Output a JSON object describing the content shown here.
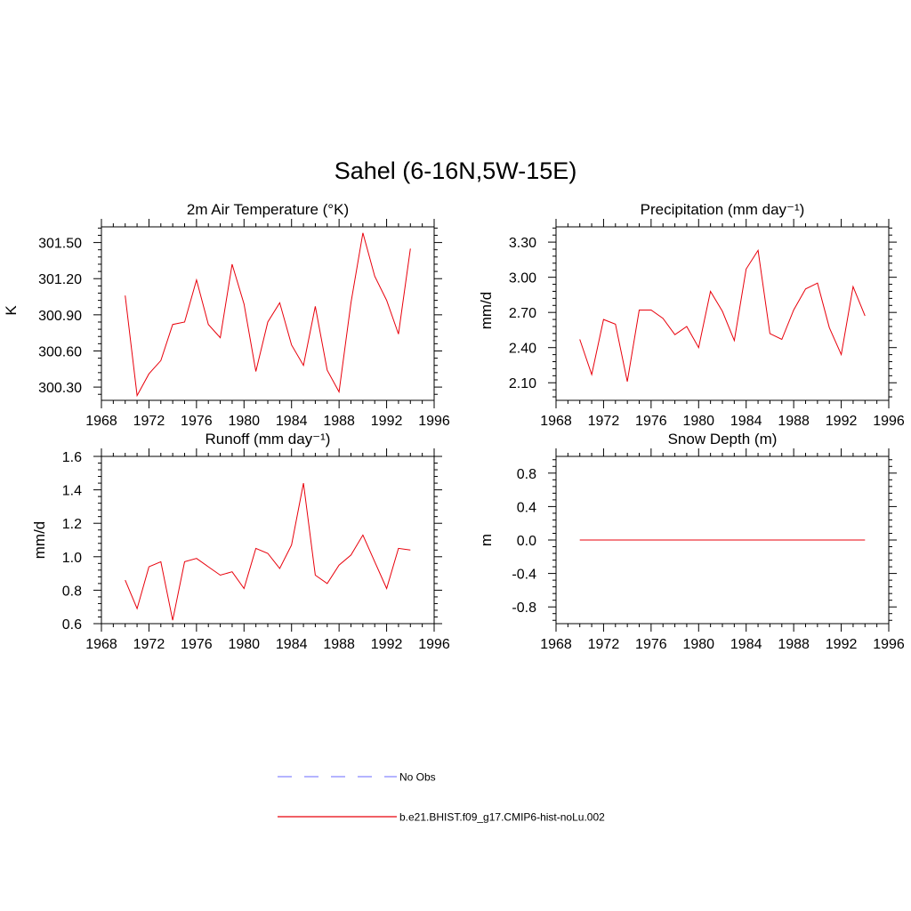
{
  "figure_title": "Sahel (6-16N,5W-15E)",
  "colors": {
    "model": "#e8000b",
    "obs": "#8888ff",
    "axis": "#000000"
  },
  "chart_data": [
    {
      "type": "line",
      "title": "2m Air Temperature (°K)",
      "ylabel": "K",
      "xlim": [
        1968,
        1996
      ],
      "ylim": [
        300.19,
        301.63
      ],
      "xticks": [
        1968,
        1972,
        1976,
        1980,
        1984,
        1988,
        1992,
        1996
      ],
      "yticks": [
        300.3,
        300.6,
        300.9,
        301.2,
        301.5
      ],
      "ytick_labels": [
        "300.30",
        "300.60",
        "300.90",
        "301.20",
        "301.50"
      ],
      "x": [
        1970,
        1971,
        1972,
        1973,
        1974,
        1975,
        1976,
        1977,
        1978,
        1979,
        1980,
        1981,
        1982,
        1983,
        1984,
        1985,
        1986,
        1987,
        1988,
        1989,
        1990,
        1991,
        1992,
        1993,
        1994
      ],
      "series": [
        {
          "name": "b.e21.BHIST.f09_g17.CMIP6-hist-noLu.002",
          "values": [
            301.06,
            300.23,
            300.41,
            300.52,
            300.82,
            300.84,
            301.19,
            300.82,
            300.71,
            301.32,
            300.99,
            300.43,
            300.84,
            301.0,
            300.65,
            300.48,
            300.97,
            300.44,
            300.26,
            301.0,
            301.58,
            301.22,
            301.02,
            300.74,
            301.45
          ]
        }
      ]
    },
    {
      "type": "line",
      "title": "Precipitation (mm day⁻¹)",
      "ylabel": "mm/d",
      "xlim": [
        1968,
        1996
      ],
      "ylim": [
        1.95,
        3.43
      ],
      "xticks": [
        1968,
        1972,
        1976,
        1980,
        1984,
        1988,
        1992,
        1996
      ],
      "yticks": [
        2.1,
        2.4,
        2.7,
        3.0,
        3.3
      ],
      "ytick_labels": [
        "2.10",
        "2.40",
        "2.70",
        "3.00",
        "3.30"
      ],
      "x": [
        1970,
        1971,
        1972,
        1973,
        1974,
        1975,
        1976,
        1977,
        1978,
        1979,
        1980,
        1981,
        1982,
        1983,
        1984,
        1985,
        1986,
        1987,
        1988,
        1989,
        1990,
        1991,
        1992,
        1993,
        1994
      ],
      "series": [
        {
          "name": "b.e21.BHIST.f09_g17.CMIP6-hist-noLu.002",
          "values": [
            2.47,
            2.17,
            2.64,
            2.6,
            2.11,
            2.72,
            2.72,
            2.65,
            2.51,
            2.58,
            2.4,
            2.88,
            2.71,
            2.46,
            3.07,
            3.23,
            2.52,
            2.47,
            2.72,
            2.9,
            2.95,
            2.57,
            2.34,
            2.92,
            2.67
          ]
        }
      ]
    },
    {
      "type": "line",
      "title": "Runoff (mm day⁻¹)",
      "ylabel": "mm/d",
      "xlim": [
        1968,
        1996
      ],
      "ylim": [
        0.6,
        1.6
      ],
      "xticks": [
        1968,
        1972,
        1976,
        1980,
        1984,
        1988,
        1992,
        1996
      ],
      "yticks": [
        0.6,
        0.8,
        1.0,
        1.2,
        1.4,
        1.6
      ],
      "ytick_labels": [
        "0.6",
        "0.8",
        "1.0",
        "1.2",
        "1.4",
        "1.6"
      ],
      "x": [
        1970,
        1971,
        1972,
        1973,
        1974,
        1975,
        1976,
        1977,
        1978,
        1979,
        1980,
        1981,
        1982,
        1983,
        1984,
        1985,
        1986,
        1987,
        1988,
        1989,
        1990,
        1991,
        1992,
        1993,
        1994
      ],
      "series": [
        {
          "name": "b.e21.BHIST.f09_g17.CMIP6-hist-noLu.002",
          "values": [
            0.86,
            0.69,
            0.94,
            0.97,
            0.62,
            0.97,
            0.99,
            0.94,
            0.89,
            0.91,
            0.81,
            1.05,
            1.02,
            0.93,
            1.07,
            1.44,
            0.89,
            0.84,
            0.95,
            1.01,
            1.13,
            0.97,
            0.81,
            1.05,
            1.04
          ]
        }
      ]
    },
    {
      "type": "line",
      "title": "Snow Depth (m)",
      "ylabel": "m",
      "xlim": [
        1968,
        1996
      ],
      "ylim": [
        -1.0,
        1.0
      ],
      "xticks": [
        1968,
        1972,
        1976,
        1980,
        1984,
        1988,
        1992,
        1996
      ],
      "yticks": [
        -0.8,
        -0.4,
        0.0,
        0.4,
        0.8
      ],
      "ytick_labels": [
        "-0.8",
        "-0.4",
        "0.0",
        "0.4",
        "0.8"
      ],
      "x": [
        1970,
        1971,
        1972,
        1973,
        1974,
        1975,
        1976,
        1977,
        1978,
        1979,
        1980,
        1981,
        1982,
        1983,
        1984,
        1985,
        1986,
        1987,
        1988,
        1989,
        1990,
        1991,
        1992,
        1993,
        1994
      ],
      "series": [
        {
          "name": "b.e21.BHIST.f09_g17.CMIP6-hist-noLu.002",
          "values": [
            0,
            0,
            0,
            0,
            0,
            0,
            0,
            0,
            0,
            0,
            0,
            0,
            0,
            0,
            0,
            0,
            0,
            0,
            0,
            0,
            0,
            0,
            0,
            0,
            0
          ]
        }
      ]
    }
  ],
  "legend": {
    "items": [
      {
        "label": "No Obs",
        "style": "dashed",
        "color": "#8888ff"
      },
      {
        "label": "b.e21.BHIST.f09_g17.CMIP6-hist-noLu.002",
        "style": "solid",
        "color": "#e8000b"
      }
    ]
  }
}
